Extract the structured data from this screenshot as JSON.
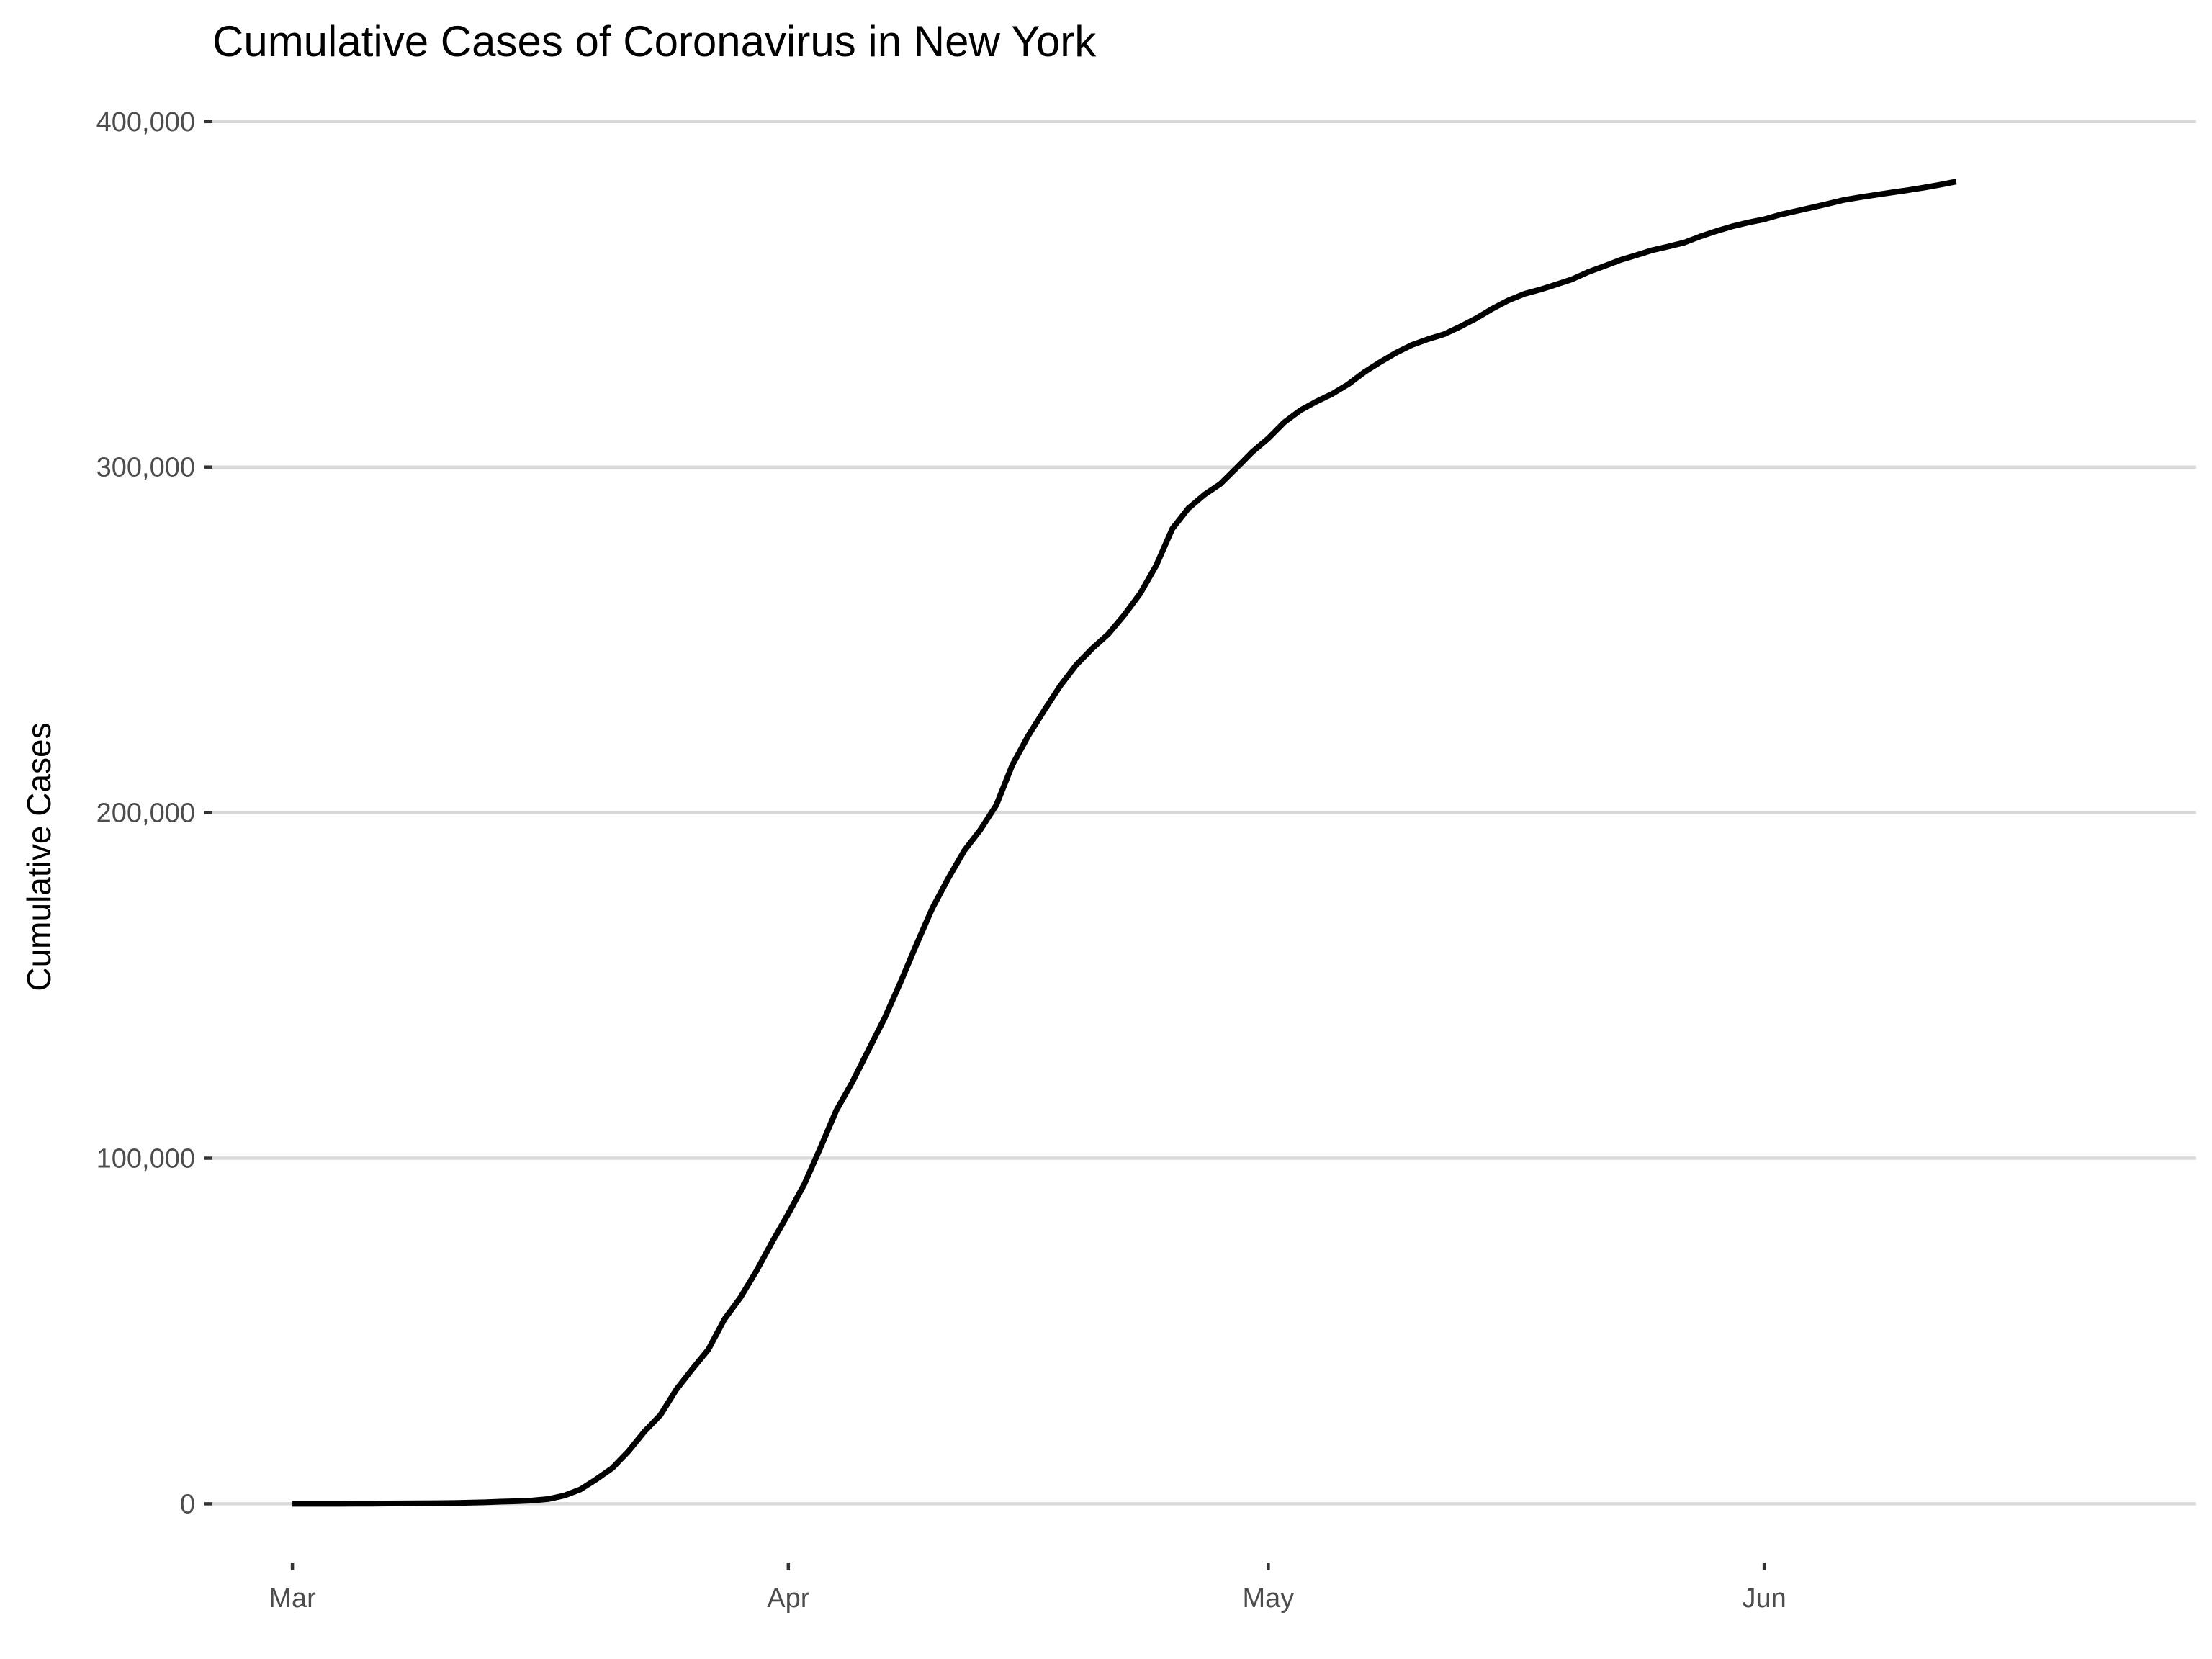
{
  "chart_data": {
    "type": "line",
    "title": "Cumulative Cases of Coronavirus in New York",
    "xlabel": "",
    "ylabel": "Cumulative Cases",
    "x_type": "date",
    "xlim": [
      "2020-02-25",
      "2020-06-28"
    ],
    "ylim": [
      -17000,
      406000
    ],
    "grid": true,
    "legend": "none",
    "line_color": "#000000",
    "grid_color": "#d9d9d9",
    "x_ticks": [
      {
        "date": "2020-03-01",
        "label": "Mar"
      },
      {
        "date": "2020-04-01",
        "label": "Apr"
      },
      {
        "date": "2020-05-01",
        "label": "May"
      },
      {
        "date": "2020-06-01",
        "label": "Jun"
      }
    ],
    "y_ticks": [
      {
        "value": 0,
        "label": "0"
      },
      {
        "value": 100000,
        "label": "100,000"
      },
      {
        "value": 200000,
        "label": "200,000"
      },
      {
        "value": 300000,
        "label": "300,000"
      },
      {
        "value": 400000,
        "label": "400,000"
      }
    ],
    "series": [
      {
        "x": [
          "2020-03-01",
          "2020-03-02",
          "2020-03-03",
          "2020-03-04",
          "2020-03-05",
          "2020-03-06",
          "2020-03-07",
          "2020-03-08",
          "2020-03-09",
          "2020-03-10",
          "2020-03-11",
          "2020-03-12",
          "2020-03-13",
          "2020-03-14",
          "2020-03-15",
          "2020-03-16",
          "2020-03-17",
          "2020-03-18",
          "2020-03-19",
          "2020-03-20",
          "2020-03-21",
          "2020-03-22",
          "2020-03-23",
          "2020-03-24",
          "2020-03-25",
          "2020-03-26",
          "2020-03-27",
          "2020-03-28",
          "2020-03-29",
          "2020-03-30",
          "2020-03-31",
          "2020-04-01",
          "2020-04-02",
          "2020-04-03",
          "2020-04-04",
          "2020-04-05",
          "2020-04-06",
          "2020-04-07",
          "2020-04-08",
          "2020-04-09",
          "2020-04-10",
          "2020-04-11",
          "2020-04-12",
          "2020-04-13",
          "2020-04-14",
          "2020-04-15",
          "2020-04-16",
          "2020-04-17",
          "2020-04-18",
          "2020-04-19",
          "2020-04-20",
          "2020-04-21",
          "2020-04-22",
          "2020-04-23",
          "2020-04-24",
          "2020-04-25",
          "2020-04-26",
          "2020-04-27",
          "2020-04-28",
          "2020-04-29",
          "2020-04-30",
          "2020-05-01",
          "2020-05-02",
          "2020-05-03",
          "2020-05-04",
          "2020-05-05",
          "2020-05-06",
          "2020-05-07",
          "2020-05-08",
          "2020-05-09",
          "2020-05-10",
          "2020-05-11",
          "2020-05-12",
          "2020-05-13",
          "2020-05-14",
          "2020-05-15",
          "2020-05-16",
          "2020-05-17",
          "2020-05-18",
          "2020-05-19",
          "2020-05-20",
          "2020-05-21",
          "2020-05-22",
          "2020-05-23",
          "2020-05-24",
          "2020-05-25",
          "2020-05-26",
          "2020-05-27",
          "2020-05-28",
          "2020-05-29",
          "2020-05-30",
          "2020-05-31",
          "2020-06-01",
          "2020-06-02",
          "2020-06-03",
          "2020-06-04",
          "2020-06-05",
          "2020-06-06",
          "2020-06-07",
          "2020-06-08",
          "2020-06-09",
          "2020-06-10",
          "2020-06-11",
          "2020-06-12",
          "2020-06-13"
        ],
        "values": [
          1,
          1,
          2,
          11,
          22,
          44,
          89,
          106,
          142,
          173,
          217,
          326,
          421,
          610,
          732,
          950,
          1374,
          2382,
          4152,
          7102,
          10356,
          15168,
          20875,
          25665,
          33066,
          38987,
          44635,
          53363,
          59648,
          67325,
          75833,
          83948,
          92506,
          102987,
          113833,
          122031,
          131239,
          140386,
          150793,
          161779,
          172348,
          181026,
          189033,
          195031,
          202208,
          213779,
          222284,
          229642,
          236732,
          242786,
          247512,
          251690,
          257216,
          263460,
          271590,
          282143,
          288045,
          291996,
          295106,
          299691,
          304372,
          308314,
          312977,
          316415,
          318953,
          321192,
          323978,
          327469,
          330407,
          333122,
          335395,
          337055,
          338485,
          340661,
          343051,
          345813,
          348232,
          350121,
          351371,
          352845,
          354370,
          356458,
          358154,
          359926,
          361313,
          362764,
          363836,
          364965,
          366733,
          368284,
          369660,
          370770,
          371711,
          373040,
          374085,
          375133,
          376208,
          377316,
          378097,
          378799,
          379482,
          380156,
          380892,
          381714,
          382630
        ]
      }
    ]
  }
}
